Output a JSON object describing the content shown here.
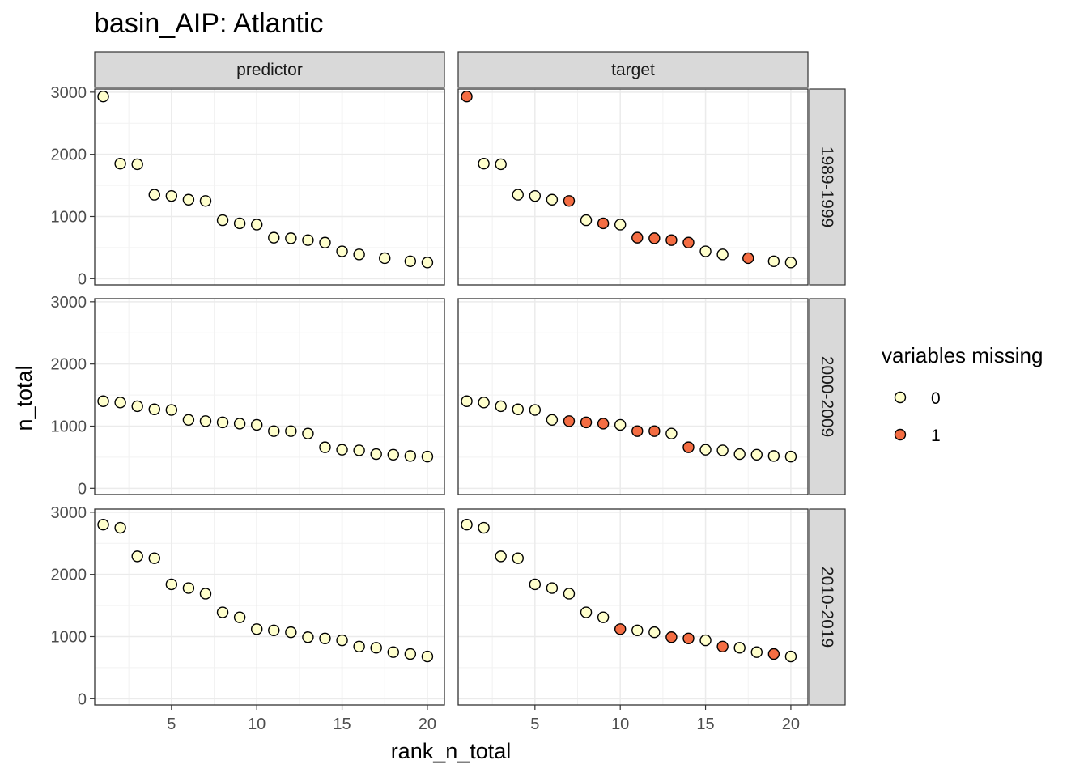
{
  "chart_data": {
    "type": "scatter",
    "title": "basin_AIP: Atlantic",
    "xlabel": "rank_n_total",
    "ylabel": "n_total",
    "x_ticks": [
      5,
      10,
      15,
      20
    ],
    "x_tick_labels": [
      "5",
      "10",
      "15",
      "20"
    ],
    "y_ticks": [
      0,
      1000,
      2000,
      3000
    ],
    "y_tick_labels": [
      "0",
      "1000",
      "2000",
      "3000"
    ],
    "xlim": [
      0.5,
      21
    ],
    "ylim": [
      -100,
      3050
    ],
    "grid": true,
    "facet_columns": [
      "predictor",
      "target"
    ],
    "facet_rows": [
      "1989-1999",
      "2000-2009",
      "2010-2019"
    ],
    "legend": {
      "title": "variables missing",
      "position": "right",
      "entries": [
        {
          "label": "0",
          "value": 0,
          "color": "#FFFFCC"
        },
        {
          "label": "1",
          "value": 1,
          "color": "#F46D43"
        }
      ]
    },
    "colors": {
      "0": "#FFFFCC",
      "1": "#F46D43",
      "outline": "#000000"
    },
    "panels": [
      {
        "row": "1989-1999",
        "column": "predictor",
        "x": [
          1,
          2,
          3,
          4,
          5,
          6,
          7,
          8,
          9,
          10,
          11,
          12,
          13,
          14,
          15,
          16,
          17.5,
          19,
          20
        ],
        "y": [
          2930,
          1850,
          1840,
          1350,
          1330,
          1270,
          1250,
          940,
          890,
          870,
          660,
          650,
          620,
          580,
          440,
          390,
          330,
          280,
          260
        ],
        "missing": [
          0,
          0,
          0,
          0,
          0,
          0,
          0,
          0,
          0,
          0,
          0,
          0,
          0,
          0,
          0,
          0,
          0,
          0,
          0
        ]
      },
      {
        "row": "1989-1999",
        "column": "target",
        "x": [
          1,
          2,
          3,
          4,
          5,
          6,
          7,
          8,
          9,
          10,
          11,
          12,
          13,
          14,
          15,
          16,
          17.5,
          19,
          20
        ],
        "y": [
          2930,
          1850,
          1840,
          1350,
          1330,
          1270,
          1250,
          940,
          890,
          870,
          660,
          650,
          620,
          580,
          440,
          390,
          330,
          280,
          260
        ],
        "missing": [
          1,
          0,
          0,
          0,
          0,
          0,
          1,
          0,
          1,
          0,
          1,
          1,
          1,
          1,
          0,
          0,
          1,
          0,
          0
        ]
      },
      {
        "row": "2000-2009",
        "column": "predictor",
        "x": [
          1,
          2,
          3,
          4,
          5,
          6,
          7,
          8,
          9,
          10,
          11,
          12,
          13,
          14,
          15,
          16,
          17,
          18,
          19,
          20
        ],
        "y": [
          1400,
          1380,
          1320,
          1270,
          1260,
          1100,
          1080,
          1060,
          1040,
          1020,
          920,
          920,
          880,
          660,
          620,
          610,
          550,
          540,
          520,
          510
        ],
        "missing": [
          0,
          0,
          0,
          0,
          0,
          0,
          0,
          0,
          0,
          0,
          0,
          0,
          0,
          0,
          0,
          0,
          0,
          0,
          0,
          0
        ]
      },
      {
        "row": "2000-2009",
        "column": "target",
        "x": [
          1,
          2,
          3,
          4,
          5,
          6,
          7,
          8,
          9,
          10,
          11,
          12,
          13,
          14,
          15,
          16,
          17,
          18,
          19,
          20
        ],
        "y": [
          1400,
          1380,
          1320,
          1270,
          1260,
          1100,
          1080,
          1060,
          1040,
          1020,
          920,
          920,
          880,
          660,
          620,
          610,
          550,
          540,
          520,
          510
        ],
        "missing": [
          0,
          0,
          0,
          0,
          0,
          0,
          1,
          1,
          1,
          0,
          1,
          1,
          0,
          1,
          0,
          0,
          0,
          0,
          0,
          0
        ]
      },
      {
        "row": "2010-2019",
        "column": "predictor",
        "x": [
          1,
          2,
          3,
          4,
          5,
          6,
          7,
          8,
          9,
          10,
          11,
          12,
          13,
          14,
          15,
          16,
          17,
          18,
          19,
          20
        ],
        "y": [
          2800,
          2750,
          2290,
          2260,
          1840,
          1780,
          1690,
          1390,
          1310,
          1120,
          1100,
          1070,
          990,
          970,
          940,
          840,
          820,
          750,
          720,
          680
        ],
        "missing": [
          0,
          0,
          0,
          0,
          0,
          0,
          0,
          0,
          0,
          0,
          0,
          0,
          0,
          0,
          0,
          0,
          0,
          0,
          0,
          0
        ]
      },
      {
        "row": "2010-2019",
        "column": "target",
        "x": [
          1,
          2,
          3,
          4,
          5,
          6,
          7,
          8,
          9,
          10,
          11,
          12,
          13,
          14,
          15,
          16,
          17,
          18,
          19,
          20
        ],
        "y": [
          2800,
          2750,
          2290,
          2260,
          1840,
          1780,
          1690,
          1390,
          1310,
          1120,
          1100,
          1070,
          990,
          970,
          940,
          840,
          820,
          750,
          720,
          680
        ],
        "missing": [
          0,
          0,
          0,
          0,
          0,
          0,
          0,
          0,
          0,
          1,
          0,
          0,
          1,
          1,
          0,
          1,
          0,
          0,
          1,
          0
        ]
      }
    ]
  }
}
